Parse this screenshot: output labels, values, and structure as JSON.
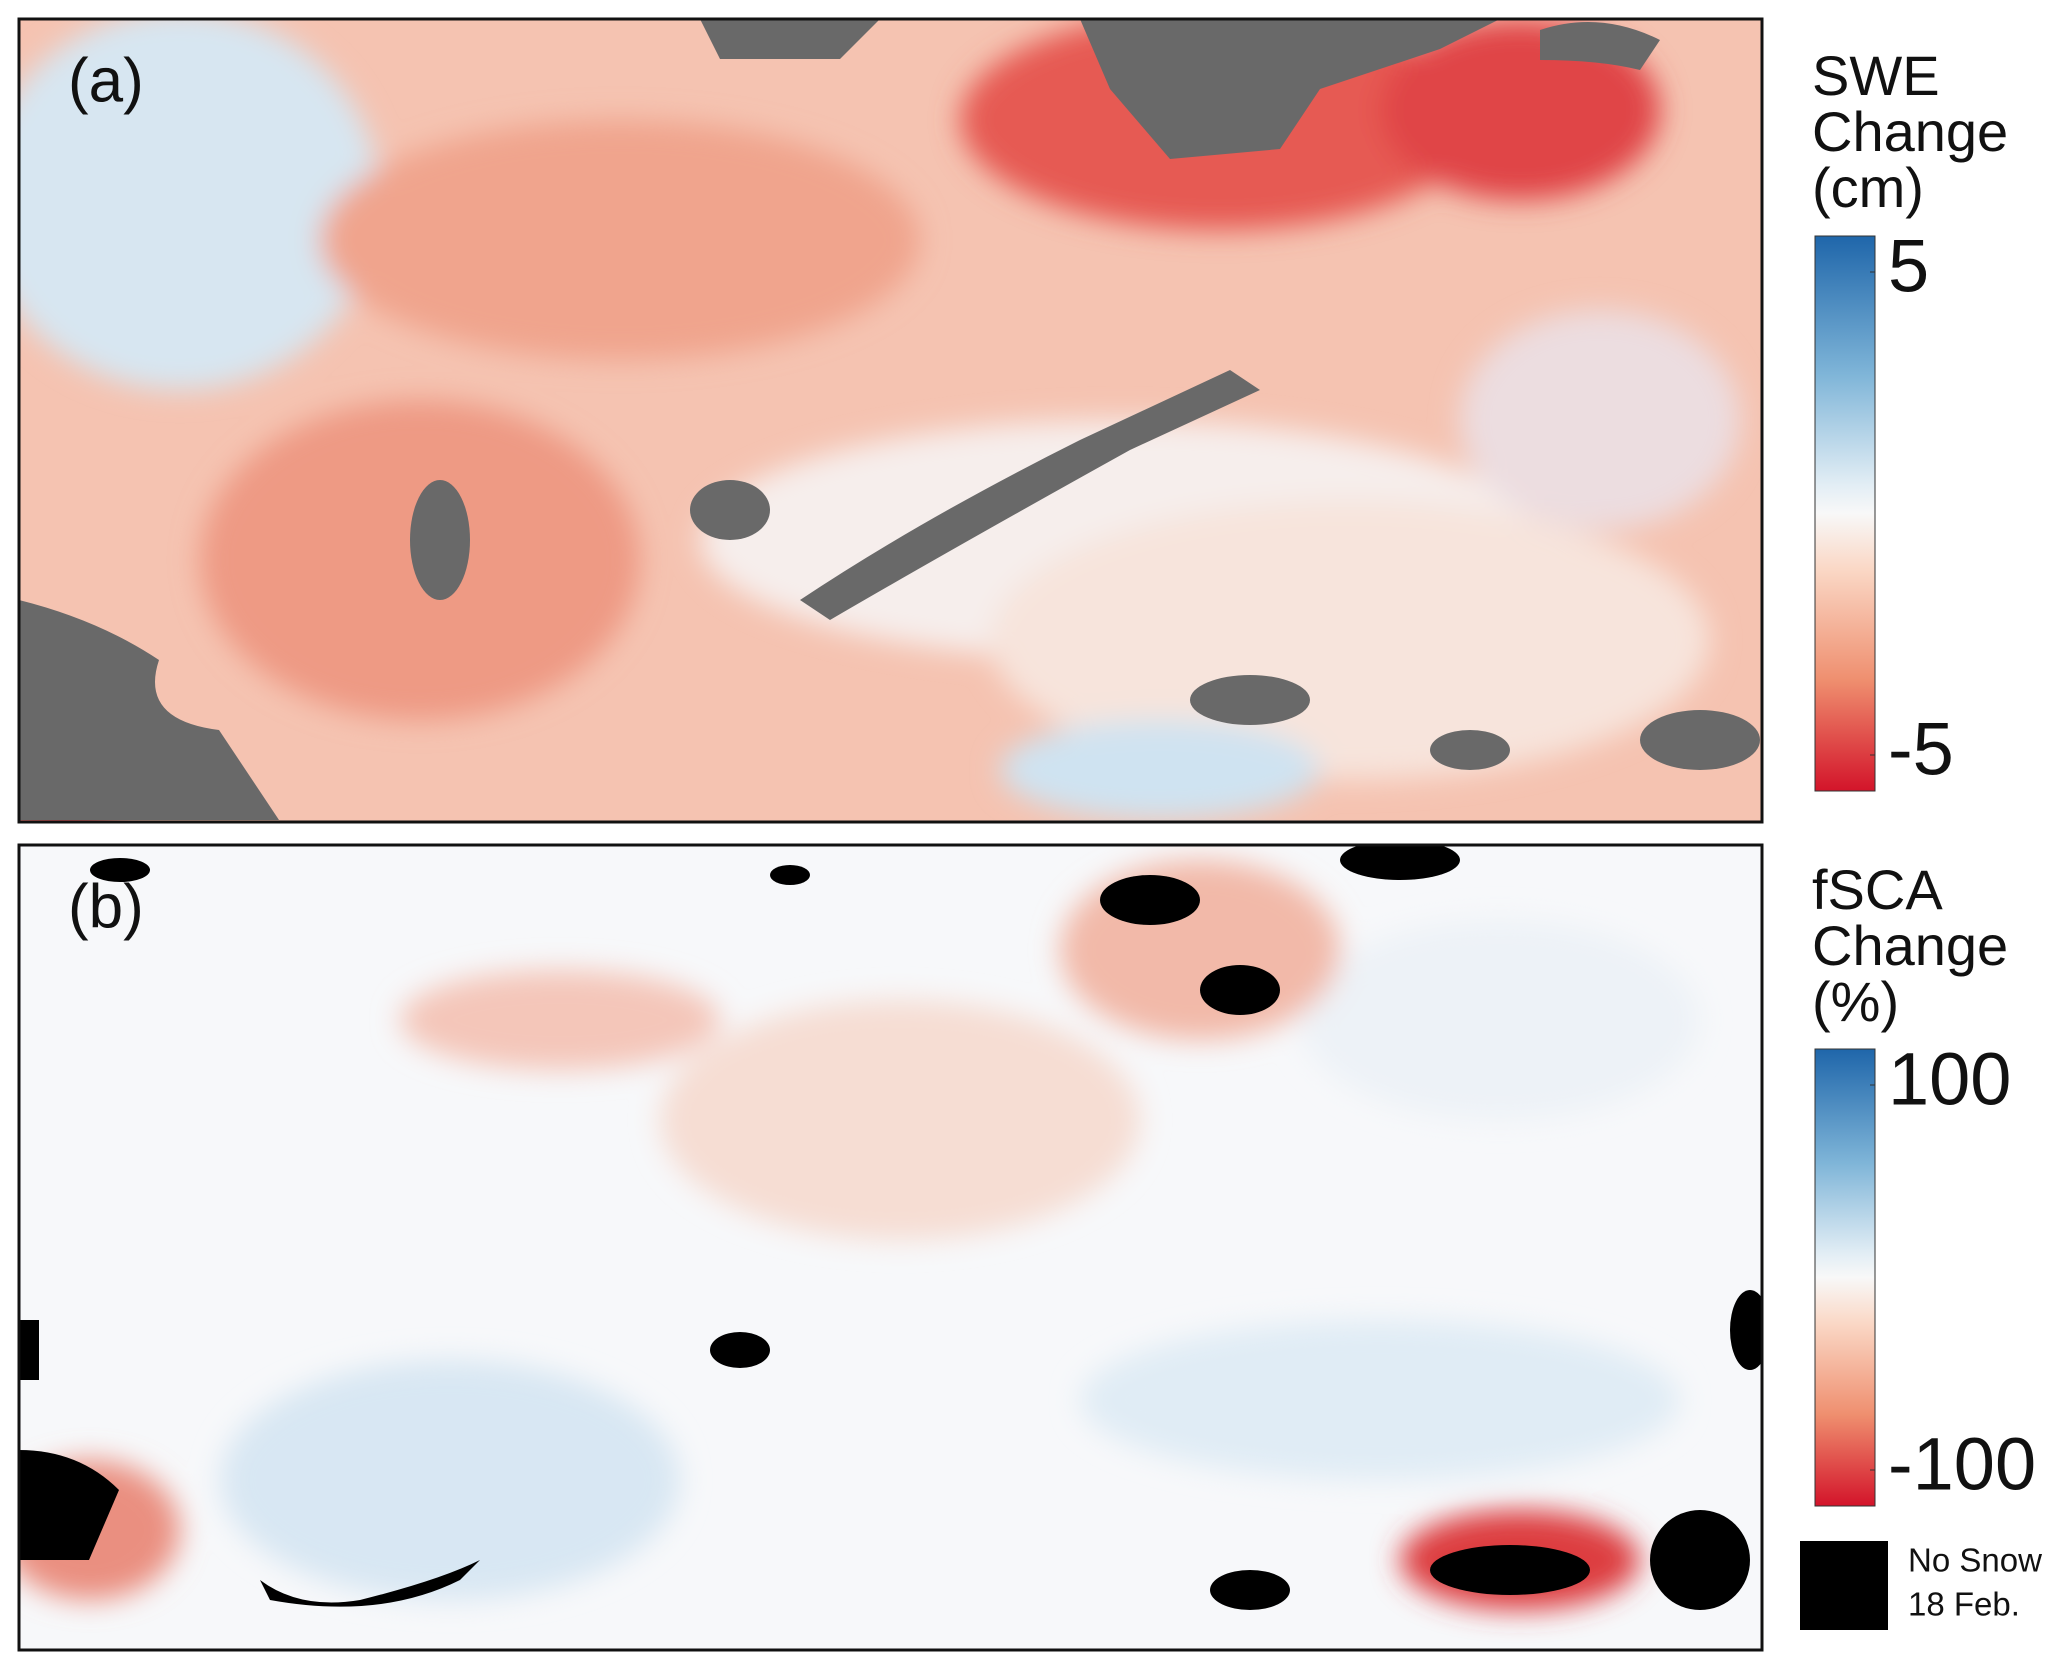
{
  "chart_data": [
    {
      "type": "heatmap",
      "panel_label": "(a)",
      "colorbar_title": [
        "SWE",
        "Change",
        "(cm)"
      ],
      "clim": [
        -5,
        5
      ],
      "colorbar_ticks": [
        5,
        -5
      ],
      "mask_color": "#696969"
    },
    {
      "type": "heatmap",
      "panel_label": "(b)",
      "colorbar_title": [
        "fSCA",
        "Change",
        "(%)"
      ],
      "clim": [
        -100,
        100
      ],
      "colorbar_ticks": [
        100,
        -100
      ],
      "mask_color": "#000000",
      "mask_legend": [
        "No Snow",
        "18 Feb."
      ]
    }
  ]
}
